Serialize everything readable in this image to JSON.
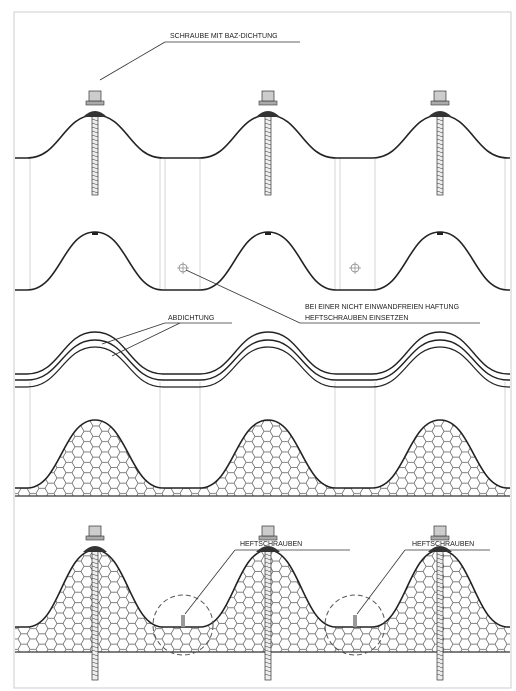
{
  "callouts": {
    "screw": "SCHRAUBE MIT BAZ-DICHTUNG",
    "adhesion": [
      "BEI EINER NICHT EINWANDFREIEN HAFTUNG",
      "HEFTSCHRAUBEN EINSETZEN"
    ],
    "sealing": "ABDICHTUNG",
    "tack_screws": [
      "HEFTSCHRAUBEN",
      "HEFTSCHRAUBEN"
    ]
  }
}
